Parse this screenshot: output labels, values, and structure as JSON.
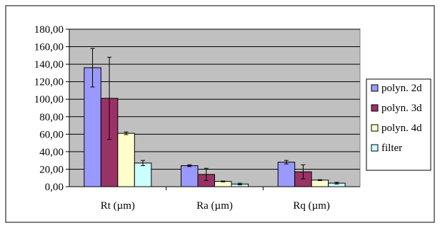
{
  "chart_data": {
    "type": "bar",
    "categories": [
      "Rt (µm)",
      "Ra (µm)",
      "Rq (µm)"
    ],
    "series": [
      {
        "name": "polyn. 2d",
        "color": "#9999ff",
        "values": [
          136,
          24,
          28
        ],
        "error": [
          22,
          1,
          2
        ]
      },
      {
        "name": "polyn. 3d",
        "color": "#993366",
        "values": [
          101,
          14,
          17
        ],
        "error": [
          47,
          7,
          8
        ]
      },
      {
        "name": "polyn. 4d",
        "color": "#ffffcc",
        "values": [
          61,
          6,
          7.5
        ],
        "error": [
          1.5,
          0.5,
          0.5
        ]
      },
      {
        "name": "filter",
        "color": "#ccffff",
        "values": [
          27,
          3,
          4
        ],
        "error": [
          3,
          1,
          1
        ]
      }
    ],
    "ylim": [
      0,
      180
    ],
    "yticks": [
      "0,00",
      "20,00",
      "40,00",
      "60,00",
      "80,00",
      "100,00",
      "120,00",
      "140,00",
      "160,00",
      "180,00"
    ],
    "grid": true,
    "plot_background": "#c0c0c0",
    "legend_position": "right",
    "title": "",
    "xlabel": "",
    "ylabel": ""
  }
}
